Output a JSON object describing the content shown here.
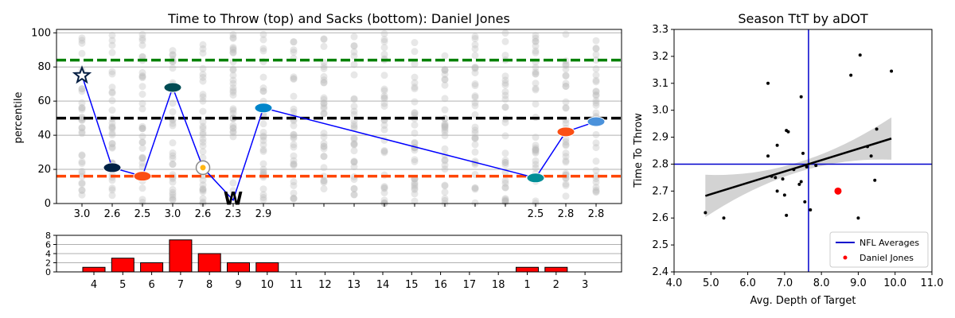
{
  "chart_data": [
    {
      "type": "line",
      "title": "Time to Throw (top) and Sacks (bottom): Daniel Jones",
      "ylabel": "percentile",
      "ylim": [
        0,
        102
      ],
      "yticks": [
        0,
        20,
        40,
        60,
        80,
        100
      ],
      "reference_lines": [
        {
          "value": 84,
          "color": "#008000",
          "style": "dashed"
        },
        {
          "value": 50,
          "color": "#000000",
          "style": "dashed"
        },
        {
          "value": 16,
          "color": "#ff4500",
          "style": "dashed"
        }
      ],
      "x_positions": [
        1,
        2,
        3,
        4,
        5,
        6,
        7,
        8,
        9,
        10,
        11,
        12,
        13,
        14,
        15,
        16,
        17,
        18
      ],
      "x_tick_labels": [
        "3.0",
        "2.6",
        "2.5",
        "3.0",
        "2.6",
        "2.3",
        "2.9",
        "",
        "",
        "",
        "",
        "",
        "",
        "",
        "",
        "2.5",
        "2.8",
        "2.8"
      ],
      "series": [
        {
          "color": "#0000ff",
          "points": [
            {
              "x": 1,
              "y": 75,
              "opponent_icon": "cowboys-logo-icon",
              "icon_color": "#041E42"
            },
            {
              "x": 2,
              "y": 21,
              "opponent_icon": "seahawks-logo-icon",
              "icon_color": "#002244"
            },
            {
              "x": 3,
              "y": 16,
              "opponent_icon": "bengals-logo-icon",
              "icon_color": "#FB4F14"
            },
            {
              "x": 4,
              "y": 68,
              "opponent_icon": "eagles-logo-icon",
              "icon_color": "#004C54"
            },
            {
              "x": 5,
              "y": 21,
              "opponent_icon": "steelers-logo-icon",
              "icon_color": "#FFB612"
            },
            {
              "x": 6,
              "y": 2,
              "opponent_icon": "commanders-logo-icon",
              "icon_color": "#FFB612"
            },
            {
              "x": 7,
              "y": 56,
              "opponent_icon": "panthers-logo-icon",
              "icon_color": "#0085CA"
            },
            {
              "x": 16,
              "y": 15,
              "opponent_icon": "dolphins-logo-icon",
              "icon_color": "#008E97"
            },
            {
              "x": 17,
              "y": 42,
              "opponent_icon": "broncos-logo-icon",
              "icon_color": "#FB4F14"
            },
            {
              "x": 18,
              "y": 48,
              "opponent_icon": "titans-logo-icon",
              "icon_color": "#4B92DB"
            }
          ]
        }
      ]
    },
    {
      "type": "bar",
      "categories": [
        "4",
        "5",
        "6",
        "7",
        "8",
        "9",
        "10",
        "11",
        "12",
        "13",
        "14",
        "15",
        "16",
        "17",
        "18",
        "1",
        "2",
        "3"
      ],
      "values": [
        1,
        3,
        2,
        7,
        4,
        2,
        2,
        0,
        0,
        0,
        0,
        0,
        0,
        0,
        0,
        1,
        1,
        0
      ],
      "ylim": [
        0,
        8
      ],
      "yticks": [
        0,
        2,
        4,
        6,
        8
      ],
      "bar_color": "#ff0000"
    },
    {
      "type": "scatter",
      "title": "Season TtT by aDOT",
      "xlabel": "Avg. Depth of Target",
      "ylabel": "Time To Throw",
      "xlim": [
        4.0,
        11.0
      ],
      "ylim": [
        2.4,
        3.3
      ],
      "xticks": [
        "4.0",
        "5.0",
        "6.0",
        "7.0",
        "8.0",
        "9.0",
        "10.0",
        "11.0"
      ],
      "yticks": [
        "2.4",
        "2.5",
        "2.6",
        "2.7",
        "2.8",
        "2.9",
        "3.0",
        "3.1",
        "3.2",
        "3.3"
      ],
      "nfl_average": {
        "x": 7.65,
        "y": 2.8
      },
      "trendline": {
        "x": [
          4.85,
          9.9
        ],
        "y": [
          2.682,
          2.895
        ]
      },
      "series": [
        {
          "name": "",
          "color": "#000000",
          "points": [
            [
              4.85,
              2.62
            ],
            [
              5.35,
              2.6
            ],
            [
              6.55,
              3.1
            ],
            [
              6.55,
              2.83
            ],
            [
              6.65,
              2.755
            ],
            [
              6.75,
              2.75
            ],
            [
              6.8,
              2.87
            ],
            [
              6.95,
              2.745
            ],
            [
              7.0,
              2.685
            ],
            [
              7.05,
              2.61
            ],
            [
              7.05,
              2.925
            ],
            [
              7.1,
              2.92
            ],
            [
              7.25,
              2.78
            ],
            [
              7.4,
              2.725
            ],
            [
              7.45,
              3.05
            ],
            [
              7.45,
              2.735
            ],
            [
              7.5,
              2.84
            ],
            [
              7.55,
              2.66
            ],
            [
              7.6,
              2.79
            ],
            [
              7.7,
              2.63
            ],
            [
              7.85,
              2.795
            ],
            [
              6.8,
              2.7
            ],
            [
              8.8,
              3.13
            ],
            [
              9.0,
              2.6
            ],
            [
              9.05,
              3.205
            ],
            [
              9.25,
              2.865
            ],
            [
              9.35,
              2.83
            ],
            [
              9.45,
              2.74
            ],
            [
              9.5,
              2.93
            ],
            [
              9.9,
              3.145
            ]
          ]
        },
        {
          "name": "Daniel Jones",
          "color": "#ff0000",
          "points": [
            [
              8.45,
              2.7
            ]
          ]
        }
      ],
      "legend": {
        "placement": "lower-right",
        "entries": [
          "NFL Averages",
          "Daniel Jones"
        ]
      }
    }
  ]
}
